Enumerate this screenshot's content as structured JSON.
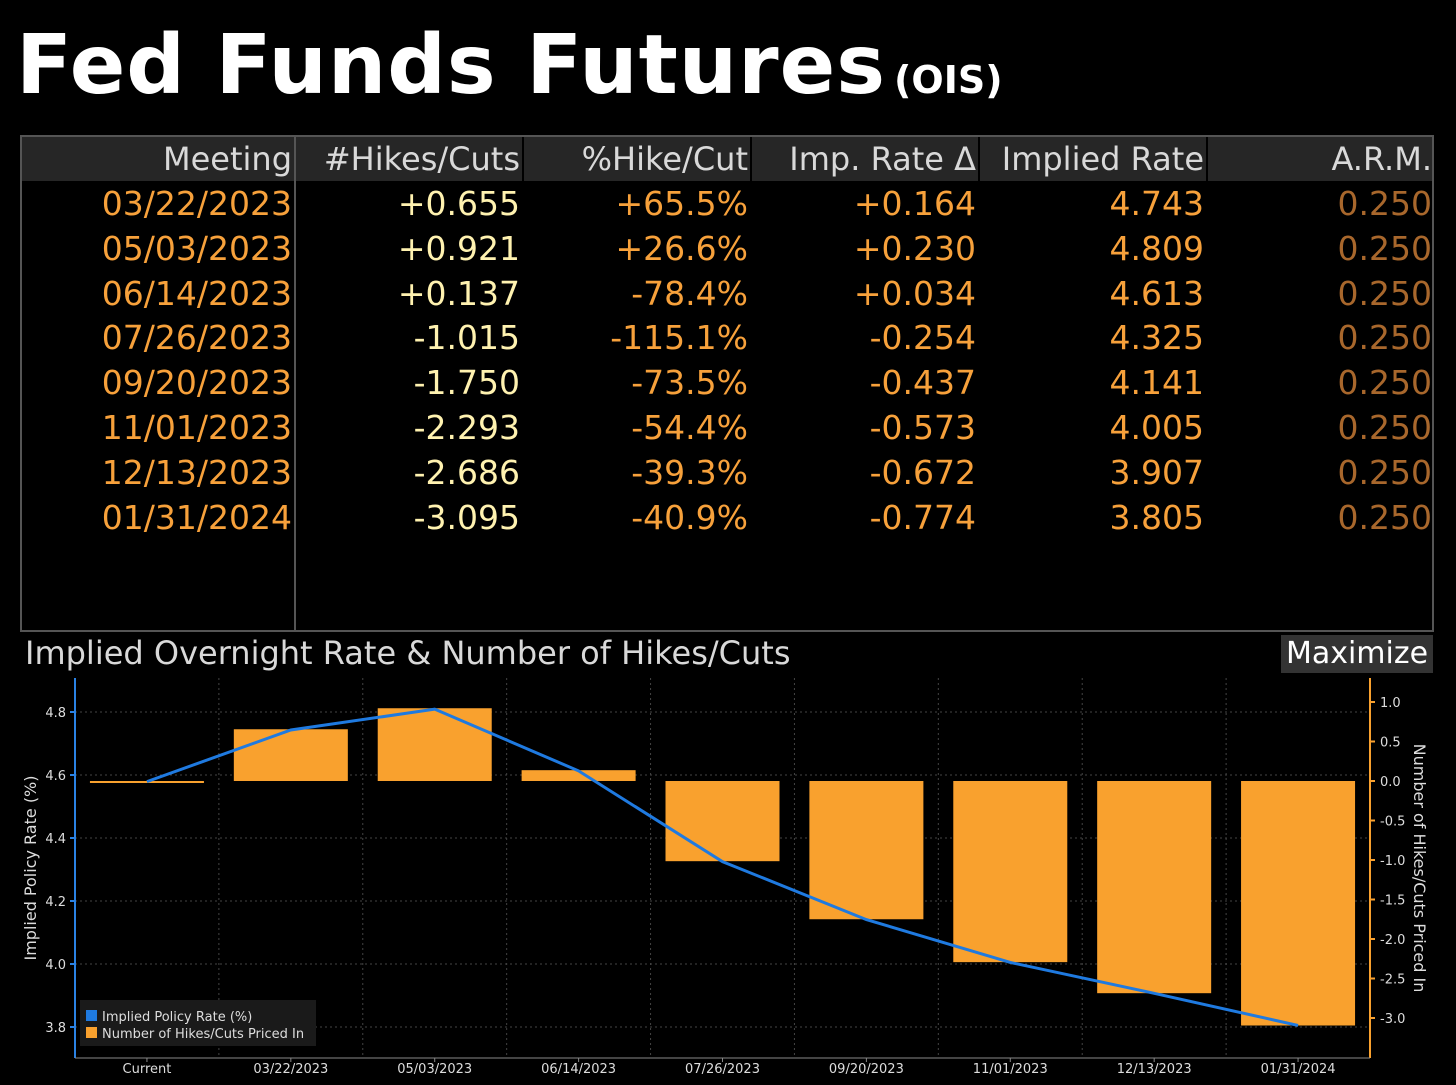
{
  "header": {
    "title": "Fed Funds Futures",
    "subtitle": "(OIS)"
  },
  "table": {
    "columns": [
      "Meeting",
      "#Hikes/Cuts",
      "%Hike/Cut",
      "Imp. Rate Δ",
      "Implied Rate",
      "A.R.M."
    ],
    "rows": [
      [
        "03/22/2023",
        "+0.655",
        "+65.5%",
        "+0.164",
        "4.743",
        "0.250"
      ],
      [
        "05/03/2023",
        "+0.921",
        "+26.6%",
        "+0.230",
        "4.809",
        "0.250"
      ],
      [
        "06/14/2023",
        "+0.137",
        "-78.4%",
        "+0.034",
        "4.613",
        "0.250"
      ],
      [
        "07/26/2023",
        "-1.015",
        "-115.1%",
        "-0.254",
        "4.325",
        "0.250"
      ],
      [
        "09/20/2023",
        "-1.750",
        "-73.5%",
        "-0.437",
        "4.141",
        "0.250"
      ],
      [
        "11/01/2023",
        "-2.293",
        "-54.4%",
        "-0.573",
        "4.005",
        "0.250"
      ],
      [
        "12/13/2023",
        "-2.686",
        "-39.3%",
        "-0.672",
        "3.907",
        "0.250"
      ],
      [
        "01/31/2024",
        "-3.095",
        "-40.9%",
        "-0.774",
        "3.805",
        "0.250"
      ]
    ]
  },
  "chart_panel": {
    "title": "Implied Overnight Rate & Number of Hikes/Cuts",
    "maximize_label": "Maximize"
  },
  "colors": {
    "bar": "#f9a12e",
    "line": "#1f7ae0",
    "axis_left": "#2a82e4",
    "axis_right": "#f9a12e",
    "text_orange": "#f7a13b"
  },
  "chart_data": {
    "type": "bar+line",
    "categories": [
      "Current",
      "03/22/2023",
      "05/03/2023",
      "06/14/2023",
      "07/26/2023",
      "09/20/2023",
      "11/01/2023",
      "12/13/2023",
      "01/31/2024"
    ],
    "series": [
      {
        "name": "Implied Policy Rate (%)",
        "type": "line",
        "axis": "left",
        "values": [
          4.579,
          4.743,
          4.809,
          4.613,
          4.325,
          4.141,
          4.005,
          3.907,
          3.805
        ]
      },
      {
        "name": "Number of Hikes/Cuts Priced In",
        "type": "bar",
        "axis": "right",
        "values": [
          0.0,
          0.655,
          0.921,
          0.137,
          -1.015,
          -1.75,
          -2.293,
          -2.686,
          -3.095
        ]
      }
    ],
    "ylabel": "Implied Policy Rate (%)",
    "y2label": "Number of Hikes/Cuts Priced In",
    "ylim": [
      3.75,
      4.9
    ],
    "y2lim": [
      -3.25,
      1.25
    ],
    "yticks": [
      3.8,
      4.0,
      4.2,
      4.4,
      4.6,
      4.8
    ],
    "y2ticks": [
      -3.0,
      -2.5,
      -2.0,
      -1.5,
      -1.0,
      -0.5,
      0.0,
      0.5,
      1.0
    ],
    "yticklabels": [
      "3.8",
      "4.0",
      "4.2",
      "4.4",
      "4.6",
      "4.8"
    ],
    "y2ticklabels": [
      "-3.0",
      "-2.5",
      "-2.0",
      "-1.5",
      "-1.0",
      "-0.5",
      "0.0",
      "0.5",
      "1.0"
    ],
    "grid": true,
    "legend": "bottom-left"
  }
}
